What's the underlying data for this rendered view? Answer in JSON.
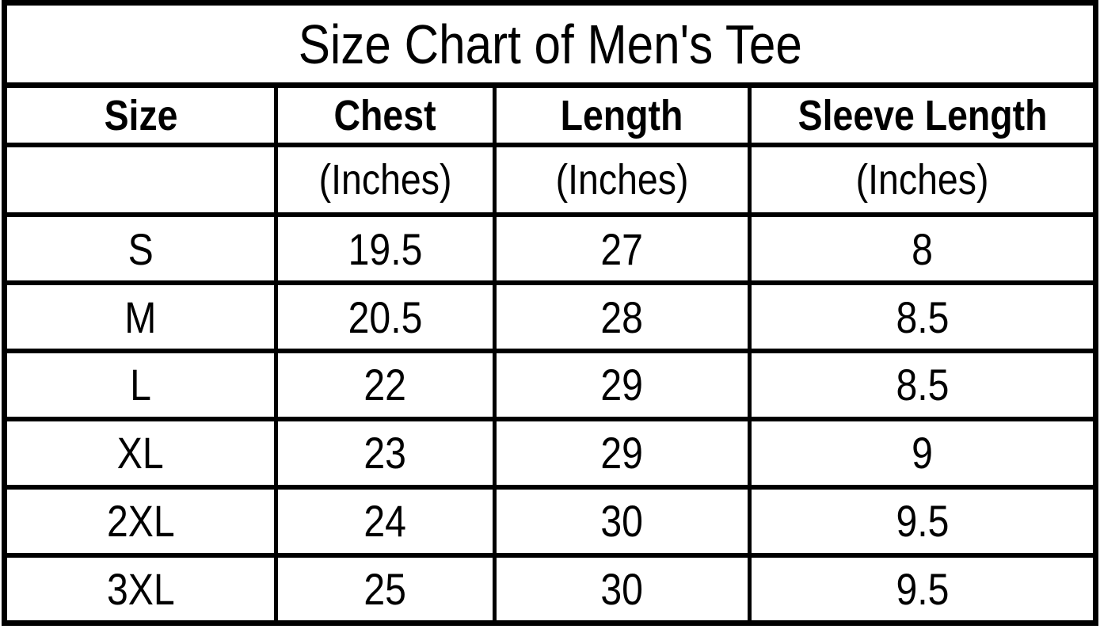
{
  "chart_data": {
    "type": "table",
    "title": "Size Chart of Men's Tee",
    "columns": [
      "Size",
      "Chest (Inches)",
      "Length (Inches)",
      "Sleeve Length (Inches)"
    ],
    "rows": [
      [
        "S",
        19.5,
        27,
        8
      ],
      [
        "M",
        20.5,
        28,
        8.5
      ],
      [
        "L",
        22,
        29,
        8.5
      ],
      [
        "XL",
        23,
        29,
        9
      ],
      [
        "2XL",
        24,
        30,
        9.5
      ],
      [
        "3XL",
        25,
        30,
        9.5
      ]
    ],
    "layout_hints": {
      "title_position": "top-spanning-row",
      "unit_subheader_row": [
        "",
        "(Inches)",
        "(Inches)",
        "(Inches)"
      ],
      "grid": "on",
      "header_bold": true
    }
  },
  "table": {
    "title": "Size Chart of Men's Tee",
    "headers": [
      "Size",
      "Chest",
      "Length",
      "Sleeve Length"
    ],
    "units": [
      "",
      "(Inches)",
      "(Inches)",
      "(Inches)"
    ],
    "rows": [
      [
        "S",
        "19.5",
        "27",
        "8"
      ],
      [
        "M",
        "20.5",
        "28",
        "8.5"
      ],
      [
        "L",
        "22",
        "29",
        "8.5"
      ],
      [
        "XL",
        "23",
        "29",
        "9"
      ],
      [
        "2XL",
        "24",
        "30",
        "9.5"
      ],
      [
        "3XL",
        "25",
        "30",
        "9.5"
      ]
    ],
    "colors": {
      "border": "#000000",
      "background": "#ffffff",
      "text": "#000000"
    }
  }
}
